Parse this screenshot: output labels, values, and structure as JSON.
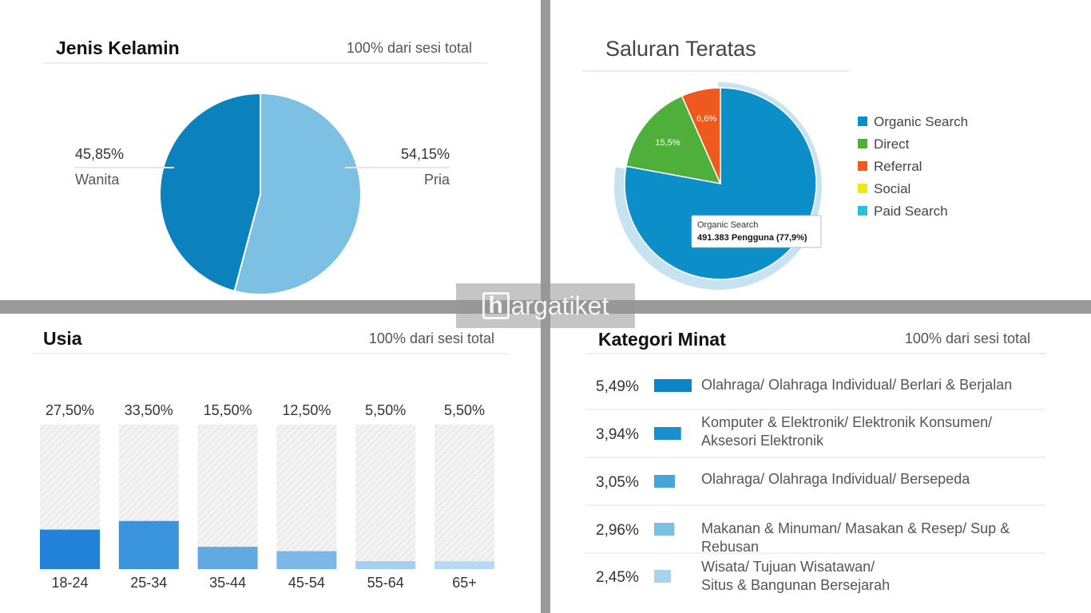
{
  "watermark": {
    "letter": "h",
    "text": "argatiket"
  },
  "panels": {
    "gender": {
      "title": "Jenis Kelamin",
      "subtitle": "100% dari sesi total"
    },
    "channel": {
      "title": "Saluran Teratas"
    },
    "age": {
      "title": "Usia",
      "subtitle": "100% dari sesi total"
    },
    "interest": {
      "title": "Kategori Minat",
      "subtitle": "100% dari sesi total"
    }
  },
  "chart_data": [
    {
      "type": "pie",
      "title": "Jenis Kelamin",
      "slices": [
        {
          "label": "Wanita",
          "value": 45.85,
          "display": "45,85%",
          "color": "#0b82bd"
        },
        {
          "label": "Pria",
          "value": 54.15,
          "display": "54,15%",
          "color": "#7cc1e3"
        }
      ]
    },
    {
      "type": "pie",
      "title": "Saluran Teratas",
      "slices": [
        {
          "label": "Organic Search",
          "value": 77.9,
          "display": "",
          "color": "#0c8ec8"
        },
        {
          "label": "Direct",
          "value": 15.5,
          "display": "15,5%",
          "color": "#4eb03b"
        },
        {
          "label": "Referral",
          "value": 6.6,
          "display": "6,6%",
          "color": "#ee5a1e"
        }
      ],
      "legend": [
        {
          "label": "Organic Search",
          "color": "#0c8ec8"
        },
        {
          "label": "Direct",
          "color": "#4eb03b"
        },
        {
          "label": "Referral",
          "color": "#ee5a1e"
        },
        {
          "label": "Social",
          "color": "#eee719"
        },
        {
          "label": "Paid Search",
          "color": "#28c0dc"
        }
      ],
      "legend_position": "right",
      "tooltip": {
        "line1": "Organic Search",
        "line2": "491.383 Pengguna (77,9%)"
      }
    },
    {
      "type": "bar",
      "title": "Usia",
      "categories": [
        "18-24",
        "25-34",
        "35-44",
        "45-54",
        "55-64",
        "65+"
      ],
      "values": [
        27.5,
        33.5,
        15.5,
        12.5,
        5.5,
        5.5
      ],
      "labels": [
        "27,50%",
        "33,50%",
        "15,50%",
        "12,50%",
        "5,50%",
        "5,50%"
      ],
      "colors": [
        "#2282d8",
        "#3a94dc",
        "#62a8e2",
        "#7cb7e7",
        "#a5cef0",
        "#b8d9f3"
      ],
      "ylim": [
        0,
        100
      ]
    },
    {
      "type": "bar",
      "title": "Kategori Minat",
      "categories": [
        "Olahraga/ Olahraga Individual/ Berlari & Berjalan",
        "Komputer & Elektronik/ Elektronik Konsumen/ Aksesori Elektronik",
        "Olahraga/ Olahraga Individual/ Bersepeda",
        "Makanan & Minuman/ Masakan & Resep/ Sup & Rebusan",
        "Wisata/ Tujuan Wisatawan/ Situs & Bangunan Bersejarah"
      ],
      "values": [
        5.49,
        3.94,
        3.05,
        2.96,
        2.45
      ],
      "labels": [
        "5,49%",
        "3,94%",
        "3,05%",
        "2,96%",
        "2,45%"
      ],
      "colors": [
        "#0d84c6",
        "#1b8ed0",
        "#47a6d9",
        "#7cc0e2",
        "#a6d4ec"
      ]
    }
  ]
}
